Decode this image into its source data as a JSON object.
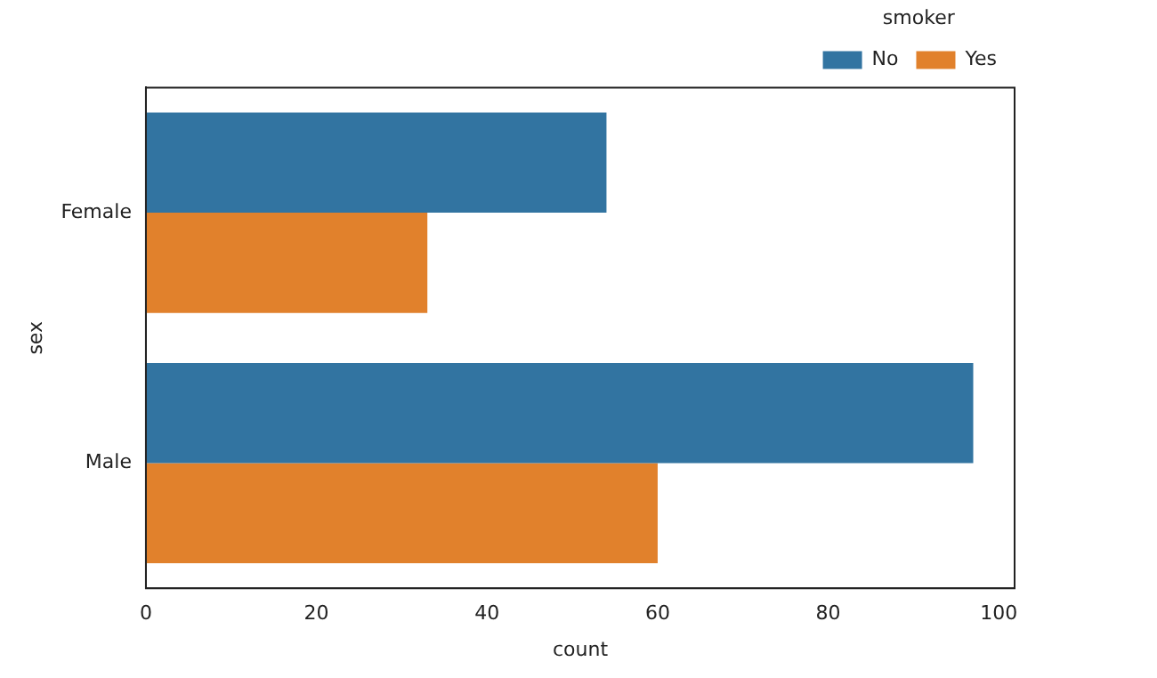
{
  "chart_data": {
    "type": "bar",
    "orientation": "horizontal",
    "xlabel": "count",
    "ylabel": "sex",
    "legend_title": "smoker",
    "categories": [
      "Female",
      "Male"
    ],
    "series": [
      {
        "name": "No",
        "color": "#3274a1",
        "values": [
          54,
          97
        ]
      },
      {
        "name": "Yes",
        "color": "#e1812c",
        "values": [
          33,
          60
        ]
      }
    ],
    "xlim": [
      0,
      101.85
    ],
    "xticks": [
      0,
      20,
      40,
      60,
      80,
      100
    ],
    "grid": false,
    "legend": "top right"
  }
}
